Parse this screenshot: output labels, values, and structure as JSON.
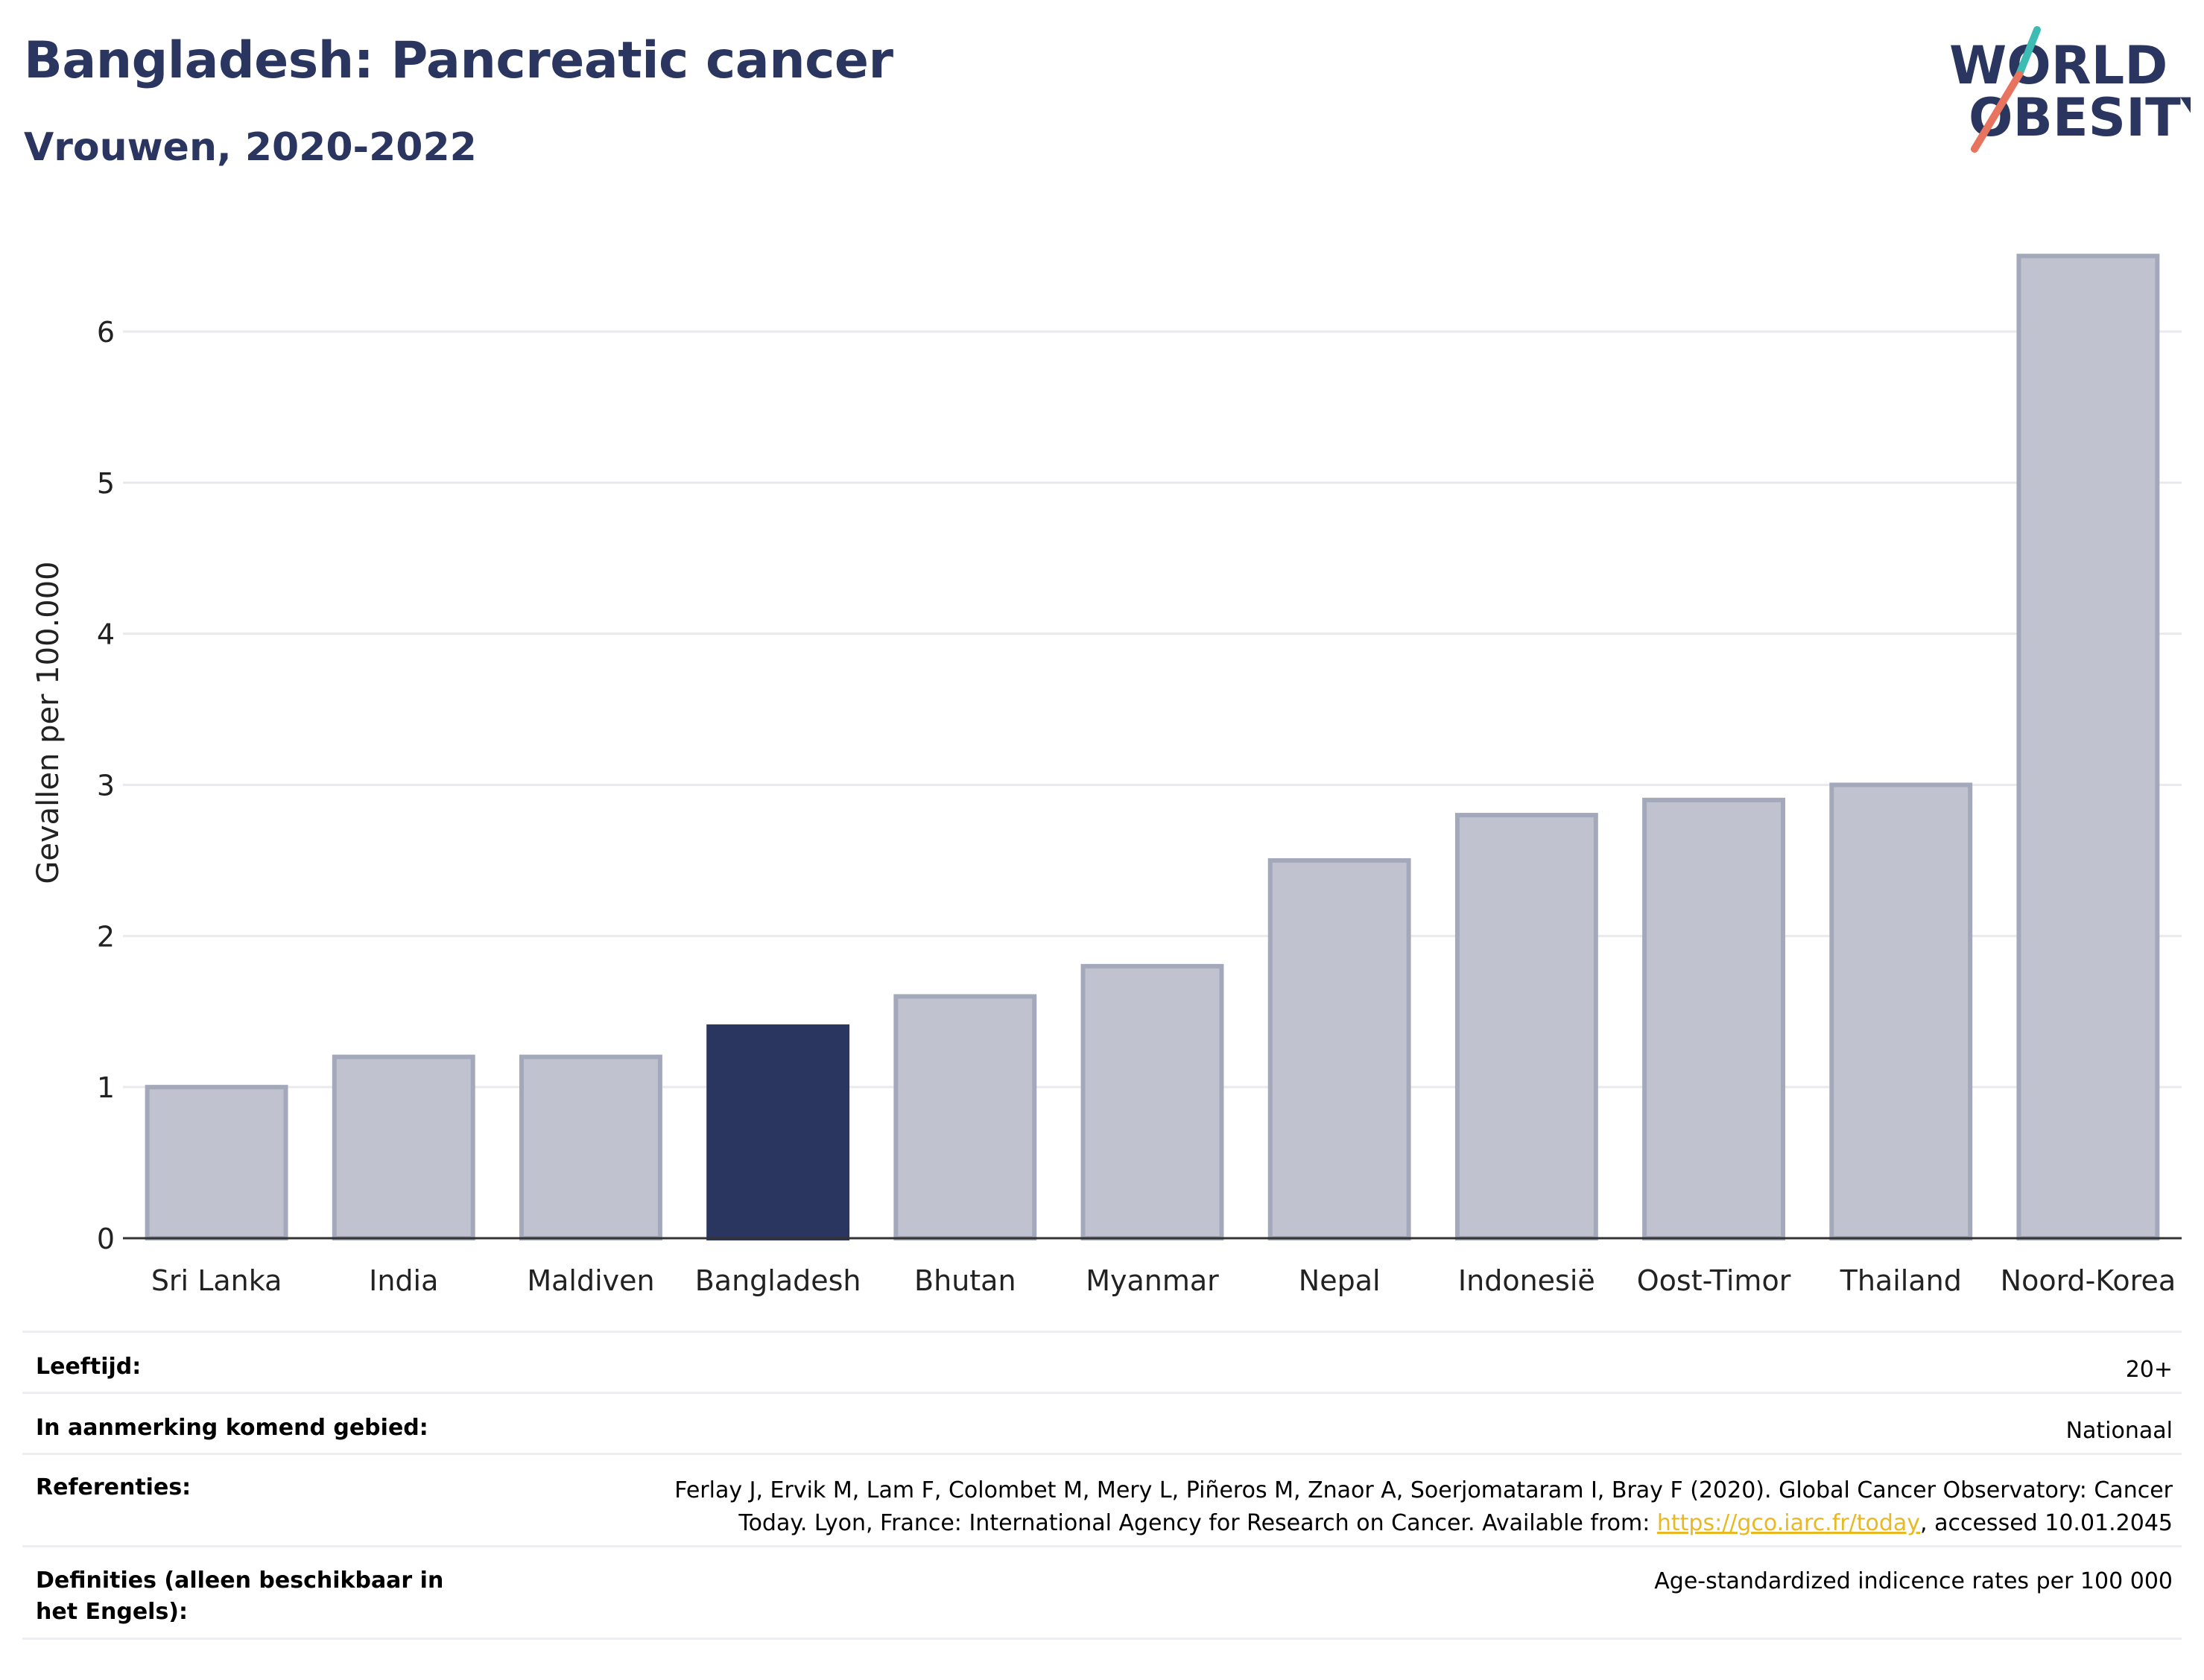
{
  "header": {
    "title": "Bangladesh: Pancreatic cancer",
    "subtitle": "Vrouwen, 2020-2022",
    "logo_line1": "WORLD",
    "logo_line2": "OBESITY"
  },
  "colors": {
    "highlight": "#2a3560",
    "bar": "#c0c3cf",
    "bar_edge": "#a3a8ba",
    "title": "#2a3560",
    "logo_teal": "#3dbcb3",
    "logo_coral": "#e8735f",
    "link": "#e8b923"
  },
  "chart_data": {
    "type": "bar",
    "ylabel": "Gevallen per 100.000",
    "xlabel": "",
    "ylim": [
      0,
      6.6
    ],
    "yticks": [
      0,
      1,
      2,
      3,
      4,
      5,
      6
    ],
    "grid": true,
    "categories": [
      "Sri Lanka",
      "India",
      "Maldiven",
      "Bangladesh",
      "Bhutan",
      "Myanmar",
      "Nepal",
      "Indonesië",
      "Oost-Timor",
      "Thailand",
      "Noord-Korea"
    ],
    "values": [
      1.0,
      1.2,
      1.2,
      1.4,
      1.6,
      1.8,
      2.5,
      2.8,
      2.9,
      3.0,
      6.5
    ],
    "highlight": "Bangladesh"
  },
  "meta": {
    "age_label": "Leeftijd:",
    "age_value": "20+",
    "area_label": "In aanmerking komend gebied:",
    "area_value": "Nationaal",
    "ref_label": "Referenties:",
    "ref_line1": "Ferlay J, Ervik M, Lam F, Colombet M, Mery L, Piñeros M, Znaor A, Soerjomataram I, Bray F (2020). Global Cancer Observatory: Cancer",
    "ref_line2_prefix": "Today. Lyon, France: International Agency for Research on Cancer. Available from: ",
    "ref_link": "https://gco.iarc.fr/today",
    "ref_line2_suffix": ", accessed 10.01.2045",
    "def_label": "Definities (alleen beschikbaar in het Engels):",
    "def_value": "Age-standardized indicence rates per 100 000"
  }
}
